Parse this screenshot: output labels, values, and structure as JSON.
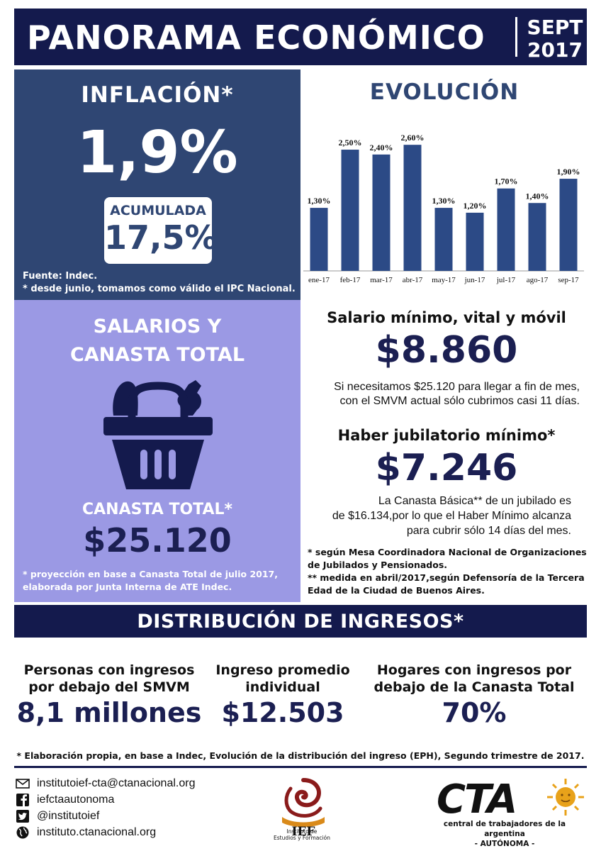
{
  "header": {
    "title": "PANORAMA ECONÓMICO",
    "date_month": "SEPT",
    "date_year": "2017"
  },
  "inflation": {
    "title": "INFLACIÓN*",
    "value": "1,9%",
    "accumulated_label": "ACUMULADA",
    "accumulated_value": "17,5%",
    "source": "Fuente: Indec.",
    "note": "* desde junio, tomamos como válido el IPC Nacional."
  },
  "chart_data": {
    "type": "bar",
    "title": "EVOLUCIÓN",
    "categories": [
      "ene-17",
      "feb-17",
      "mar-17",
      "abr-17",
      "may-17",
      "jun-17",
      "jul-17",
      "ago-17",
      "sep-17"
    ],
    "values": [
      1.3,
      2.5,
      2.4,
      2.6,
      1.3,
      1.2,
      1.7,
      1.4,
      1.9
    ],
    "data_labels": [
      "1,30%",
      "2,50%",
      "2,40%",
      "2,60%",
      "1,30%",
      "1,20%",
      "1,70%",
      "1,40%",
      "1,90%"
    ],
    "ylim": [
      0,
      3.1
    ],
    "bar_color": "#2c4a86",
    "grid": false,
    "xlabel": "",
    "ylabel": ""
  },
  "salarios": {
    "title_line1": "SALARIOS Y",
    "title_line2": "CANASTA TOTAL",
    "basket_icon": "shopping-basket-icon",
    "canasta_label": "CANASTA TOTAL*",
    "canasta_value": "$25.120",
    "note_line1": "* proyección en base a Canasta Total de julio 2017,",
    "note_line2": "elaborada por Junta Interna de ATE Indec."
  },
  "smvm": {
    "title": "Salario mínimo, vital y móvil",
    "value": "$8.860",
    "text_line1": "Si necesitamos $25.120 para llegar a fin de mes,",
    "text_line2": "con el SMVM actual sólo cubrimos casi 11 días."
  },
  "jubilacion": {
    "title": "Haber jubilatorio mínimo*",
    "value": "$7.246",
    "text_line1": "La Canasta Básica** de un jubilado es",
    "text_line2": "de $16.134,por lo que el Haber Mínimo alcanza",
    "text_line3": "para cubrir sólo 14 días del mes.",
    "note1_line1": "* según Mesa Coordinadora Nacional de Organizaciones",
    "note1_line2": "de Jubilados y Pensionados.",
    "note2_line1": "** medida en abril/2017,según Defensoría de la Tercera",
    "note2_line2": "Edad de la Ciudad de Buenos Aires."
  },
  "distribucion": {
    "title": "DISTRIBUCIÓN DE INGRESOS*",
    "stats": [
      {
        "label_line1": "Personas con ingresos",
        "label_line2": "por debajo del SMVM",
        "value": "8,1 millones"
      },
      {
        "label_line1": "Ingreso promedio",
        "label_line2": "individual",
        "value": "$12.503"
      },
      {
        "label_line1": "Hogares con ingresos por",
        "label_line2": "debajo de la Canasta Total",
        "value": "70%"
      }
    ],
    "note": "* Elaboración propia, en base a Indec, Evolución de la distribución del ingreso (EPH), Segundo trimestre de 2017."
  },
  "footer": {
    "contacts": [
      {
        "icon": "email-icon",
        "text": "institutoief-cta@ctanacional.org"
      },
      {
        "icon": "facebook-icon",
        "text": "iefctaautonoma"
      },
      {
        "icon": "twitter-icon",
        "text": "@institutoief"
      },
      {
        "icon": "globe-icon",
        "text": "instituto.ctanacional.org"
      }
    ],
    "ief_logo": {
      "text": "IEF",
      "caption_line1": "Instituto de",
      "caption_line2": "Estudios y Formación"
    },
    "cta_logo": {
      "text": "CTA",
      "caption_line1": "central de trabajadores de la argentina",
      "caption_line2": "- AUTÓNOMA -"
    }
  },
  "colors": {
    "navy": "#141a4d",
    "inflation_panel": "#2f4673",
    "salarios_panel": "#9b99e4",
    "value_text": "#1b1f52",
    "bar": "#2c4a86"
  }
}
